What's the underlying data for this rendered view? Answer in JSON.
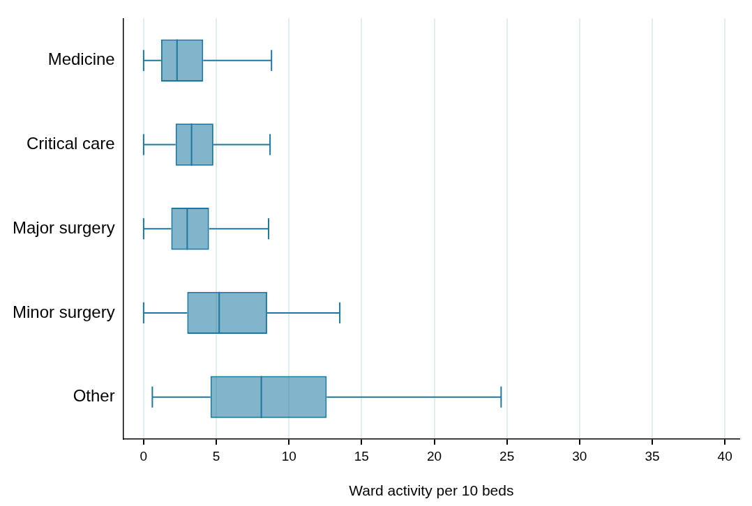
{
  "chart_data": {
    "type": "box",
    "orientation": "horizontal",
    "xlabel": "Ward activity per 10 beds",
    "categories": [
      "Medicine",
      "Critical care",
      "Major surgery",
      "Minor surgery",
      "Other"
    ],
    "boxes": [
      {
        "low": 0,
        "q1": 1.2,
        "median": 2.3,
        "q3": 4.1,
        "high": 8.8
      },
      {
        "low": 0,
        "q1": 2.2,
        "median": 3.3,
        "q3": 4.8,
        "high": 8.7
      },
      {
        "low": 0,
        "q1": 1.9,
        "median": 3.0,
        "q3": 4.5,
        "high": 8.6
      },
      {
        "low": 0,
        "q1": 3.0,
        "median": 5.2,
        "q3": 8.5,
        "high": 13.5
      },
      {
        "low": 0.6,
        "q1": 4.6,
        "median": 8.1,
        "q3": 12.6,
        "high": 24.6
      }
    ],
    "color": "#1c78a0",
    "xlim": [
      -1.4,
      41
    ],
    "xticks": [
      0,
      5,
      10,
      15,
      20,
      25,
      30,
      35,
      40
    ],
    "grid": "x",
    "legend": false
  }
}
